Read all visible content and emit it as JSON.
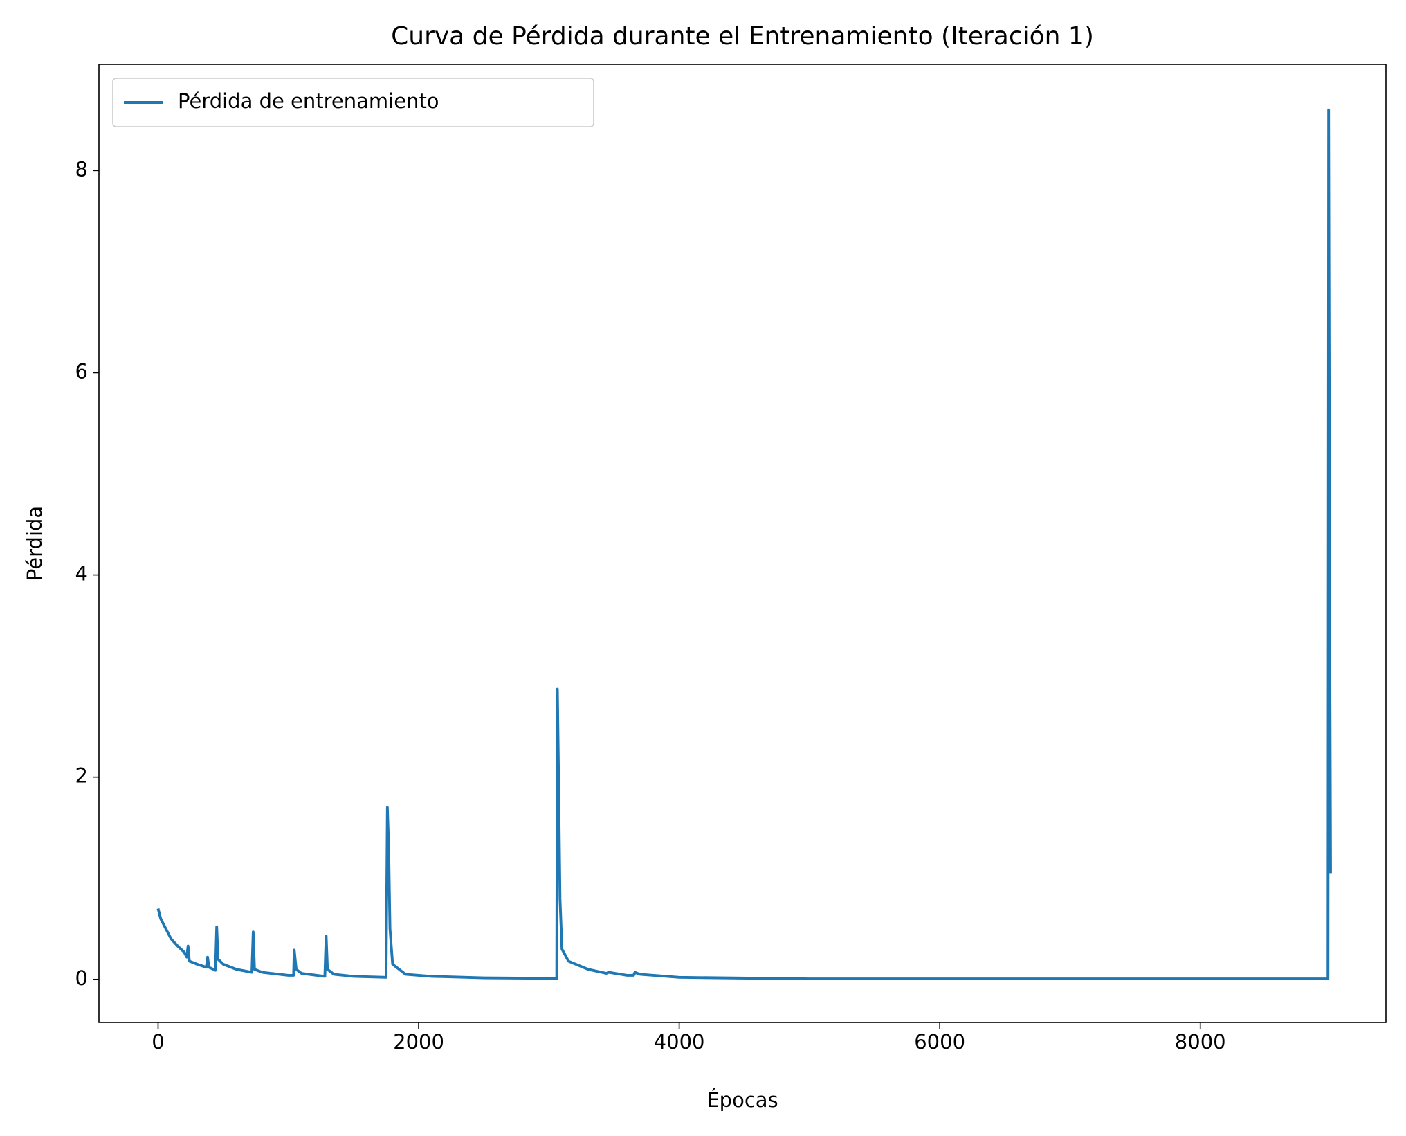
{
  "chart_data": {
    "type": "line",
    "title": "Curva de Pérdida durante el Entrenamiento (Iteración 1)",
    "x_label": "Épocas",
    "y_label": "Pérdida",
    "x": [
      0,
      20,
      60,
      100,
      150,
      200,
      220,
      230,
      240,
      300,
      370,
      380,
      390,
      440,
      450,
      460,
      500,
      600,
      720,
      730,
      740,
      800,
      1000,
      1040,
      1045,
      1060,
      1100,
      1280,
      1290,
      1300,
      1350,
      1500,
      1750,
      1760,
      1770,
      1780,
      1800,
      1900,
      2100,
      2500,
      3000,
      3060,
      3065,
      3075,
      3085,
      3100,
      3150,
      3300,
      3440,
      3460,
      3600,
      3650,
      3660,
      3700,
      4000,
      5000,
      8980,
      8985,
      8990,
      8995,
      9000
    ],
    "series": [
      {
        "name": "Pérdida de entrenamiento",
        "color": "#1f77b4",
        "values": [
          0.7,
          0.6,
          0.5,
          0.4,
          0.33,
          0.27,
          0.22,
          0.33,
          0.18,
          0.15,
          0.12,
          0.22,
          0.12,
          0.09,
          0.52,
          0.2,
          0.15,
          0.1,
          0.07,
          0.47,
          0.1,
          0.07,
          0.04,
          0.04,
          0.29,
          0.1,
          0.06,
          0.03,
          0.43,
          0.1,
          0.05,
          0.03,
          0.02,
          1.7,
          1.3,
          0.5,
          0.15,
          0.05,
          0.03,
          0.015,
          0.01,
          0.01,
          2.87,
          1.9,
          0.8,
          0.3,
          0.18,
          0.1,
          0.06,
          0.07,
          0.04,
          0.04,
          0.07,
          0.05,
          0.02,
          0.005,
          0.005,
          8.6,
          5.8,
          3.0,
          1.05
        ]
      }
    ],
    "xlim": [
      -454,
      9425
    ],
    "ylim": [
      -0.426,
      9.05
    ],
    "xticks": [
      0,
      2000,
      4000,
      6000,
      8000
    ],
    "yticks": [
      0,
      2,
      4,
      6,
      8
    ],
    "legend": "upper left"
  }
}
